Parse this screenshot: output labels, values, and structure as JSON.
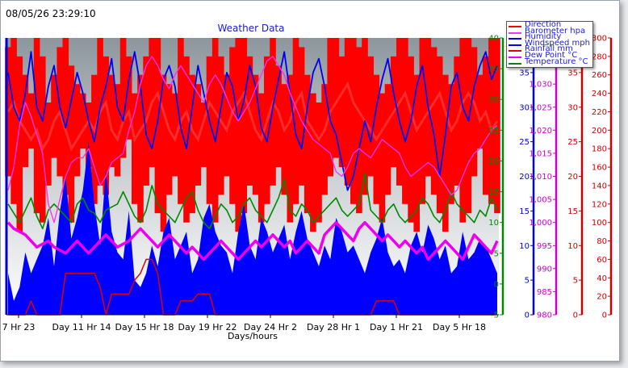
{
  "timestamp": "08/05/26 23:29:10",
  "chart_data": {
    "type": "line",
    "title": "Weather Data",
    "xlabel": "Days/hours",
    "x_ticks": [
      "7 Hr 23",
      "Day 11 Hr 14",
      "Day 15 Hr 18",
      "Day 19 Hr 22",
      "Day 24 Hr 2",
      "Day 28 Hr 1",
      "Day 1 Hr 21",
      "Day 5 Hr 18"
    ],
    "grid": false,
    "legend_position": "top-right",
    "series": [
      {
        "name": "Direction",
        "color": "#ff0000",
        "axis": "direction"
      },
      {
        "name": "Barometer hpa",
        "color": "#ff33ee",
        "axis": "barometer"
      },
      {
        "name": "Humidity",
        "color": "#0000ee",
        "axis": "humidity"
      },
      {
        "name": "Windspeed mph",
        "color": "#0000ff",
        "axis": "windspeed"
      },
      {
        "name": "Rainfall mm",
        "color": "#dd0000",
        "axis": "rainfall"
      },
      {
        "name": "Dew Point °C",
        "color": "#ee00ee",
        "axis": "dewpoint"
      },
      {
        "name": "Temperature °C",
        "color": "#008800",
        "axis": "temperature"
      }
    ],
    "axes": [
      {
        "id": "temperature",
        "color": "#008800",
        "min": -5,
        "max": 40,
        "ticks": [
          "-5",
          "0",
          "5",
          "10",
          "15",
          "20",
          "25",
          "30",
          "35",
          "40"
        ]
      },
      {
        "id": "windspeed",
        "color": "#0000cc",
        "min": 0,
        "max": 40,
        "ticks": [
          "0",
          "5",
          "10",
          "15",
          "20",
          "25",
          "30",
          "35",
          "40"
        ]
      },
      {
        "id": "barometer",
        "color": "#cc00cc",
        "min": 980,
        "max": 1040,
        "ticks": [
          "980",
          "985",
          "990",
          "995",
          "1,000",
          "1,005",
          "1,010",
          "1,015",
          "1,020",
          "1,025",
          "1,030",
          "1,035",
          "1,040"
        ]
      },
      {
        "id": "rainfall",
        "color": "#cc0000",
        "min": 0,
        "max": 40,
        "ticks": [
          "0",
          "5",
          "10",
          "15",
          "20",
          "25",
          "30",
          "35",
          "40"
        ]
      },
      {
        "id": "direction",
        "color": "#cc0000",
        "min": 0,
        "max": 300,
        "ticks": [
          "0",
          "20",
          "40",
          "60",
          "80",
          "100",
          "120",
          "140",
          "160",
          "180",
          "200",
          "220",
          "240",
          "260",
          "280",
          "300"
        ]
      }
    ],
    "temperature": [
      13,
      11.5,
      10,
      12,
      14,
      11,
      9,
      12,
      13,
      12,
      11,
      10,
      13,
      14,
      12,
      11.5,
      10,
      12,
      12.5,
      13,
      15,
      13,
      11,
      10,
      12,
      16,
      13,
      12,
      11,
      10,
      12,
      14,
      15,
      12,
      10,
      9,
      11,
      13,
      12,
      10,
      11,
      13,
      14,
      12,
      11,
      10,
      12,
      14,
      17,
      12,
      11,
      13,
      12,
      10,
      11,
      12,
      13,
      14,
      12,
      11,
      12,
      13,
      18,
      12,
      11,
      10,
      12,
      13,
      11,
      10,
      11,
      12,
      14,
      13,
      11,
      10,
      12,
      15,
      13,
      12,
      11,
      10,
      12,
      11,
      14,
      12
    ],
    "dewpoint": [
      10,
      9,
      8.5,
      8,
      7,
      6,
      6.5,
      7,
      6,
      5.5,
      5,
      6,
      7,
      6,
      5,
      6,
      7,
      8,
      7,
      6,
      6.5,
      7,
      8,
      9,
      8,
      7,
      6,
      7,
      8,
      7,
      6,
      5,
      6,
      5,
      4,
      5,
      6,
      7,
      6,
      5,
      4,
      5,
      6,
      7,
      6,
      7,
      8,
      7,
      6,
      7,
      5,
      6,
      7,
      6,
      5,
      8,
      9,
      10,
      9,
      8,
      7,
      9,
      10,
      9,
      8,
      7,
      8,
      7,
      6,
      7,
      6,
      5,
      6,
      4,
      5,
      6,
      7,
      6,
      5,
      4,
      6,
      8,
      7,
      6,
      5,
      7
    ],
    "humidity": [
      35,
      30,
      28,
      32,
      38,
      30,
      28,
      33,
      36,
      30,
      27,
      31,
      35,
      32,
      28,
      25,
      30,
      33,
      37,
      30,
      28,
      34,
      38,
      33,
      26,
      24,
      28,
      34,
      36,
      33,
      27,
      24,
      30,
      36,
      32,
      28,
      25,
      30,
      35,
      33,
      28,
      31,
      36,
      33,
      27,
      25,
      30,
      34,
      38,
      32,
      26,
      24,
      30,
      35,
      37,
      33,
      28,
      26,
      22,
      18,
      20,
      24,
      28,
      25,
      30,
      34,
      37,
      32,
      28,
      25,
      28,
      33,
      36,
      30,
      26,
      20,
      26,
      33,
      35,
      30,
      28,
      33,
      36,
      38,
      34,
      36
    ],
    "windspeed_max": [
      6,
      2,
      4,
      9,
      6,
      8,
      10,
      14,
      7,
      15,
      20,
      11,
      14,
      18,
      25,
      16,
      10,
      21,
      12,
      9,
      8,
      15,
      5,
      4,
      6,
      10,
      7,
      12,
      14,
      8,
      10,
      12,
      6,
      8,
      14,
      16,
      12,
      10,
      9,
      6,
      12,
      16,
      10,
      8,
      14,
      12,
      9,
      11,
      13,
      8,
      12,
      15,
      11,
      9,
      7,
      10,
      8,
      14,
      12,
      9,
      10,
      8,
      6,
      9,
      11,
      14,
      9,
      7,
      8,
      6,
      10,
      12,
      9,
      13,
      11,
      8,
      10,
      6,
      7,
      12,
      8,
      9,
      11,
      10,
      8,
      6
    ],
    "barometer": [
      1007,
      1012,
      1021,
      1026,
      1023,
      1019,
      1015,
      1004,
      1000,
      1005,
      1010,
      1013,
      1014,
      1014,
      1016,
      1012,
      1008,
      1010,
      1013,
      1014,
      1015,
      1020,
      1024,
      1030,
      1034,
      1036,
      1034,
      1031,
      1029,
      1032,
      1034,
      1032,
      1030,
      1028,
      1026,
      1030,
      1032,
      1030,
      1027,
      1024,
      1022,
      1024,
      1026,
      1029,
      1032,
      1035,
      1036,
      1034,
      1032,
      1028,
      1025,
      1022,
      1020,
      1018,
      1017,
      1016,
      1015,
      1011,
      1010,
      1012,
      1015,
      1016,
      1015,
      1014,
      1016,
      1018,
      1017,
      1016,
      1015,
      1012,
      1010,
      1011,
      1012,
      1013,
      1012,
      1010,
      1008,
      1006,
      1007,
      1010,
      1013,
      1015,
      1016,
      1018,
      1020,
      1021
    ],
    "rainfall": [
      0,
      0,
      0,
      0,
      2,
      0,
      0,
      0,
      0,
      0,
      6,
      6,
      6,
      6,
      6,
      6,
      4,
      0,
      3,
      3,
      3,
      3,
      5,
      6,
      8,
      8,
      6,
      0,
      0,
      0,
      2,
      2,
      2,
      3,
      3,
      3,
      0,
      0,
      0,
      0,
      0,
      0,
      0,
      0,
      0,
      0,
      0,
      0,
      0,
      0,
      0,
      0,
      0,
      0,
      0,
      0,
      0,
      0,
      0,
      0,
      0,
      0,
      0,
      0,
      2,
      2,
      2,
      2,
      0,
      0,
      0,
      0,
      0,
      0,
      0,
      0,
      0,
      0,
      0,
      0,
      0,
      0,
      0,
      0,
      0,
      0
    ],
    "direction_low": [
      150,
      120,
      90,
      160,
      180,
      110,
      100,
      140,
      170,
      150,
      130,
      100,
      150,
      180,
      160,
      120,
      140,
      130,
      160,
      150,
      170,
      190,
      120,
      100,
      140,
      160,
      110,
      90,
      130,
      150,
      120,
      100,
      110,
      140,
      160,
      120,
      100,
      130,
      150,
      120,
      90,
      110,
      140,
      130,
      100,
      120,
      140,
      160,
      130,
      100,
      120,
      140,
      110,
      90,
      100,
      130,
      150,
      170,
      160,
      140,
      120,
      110,
      130,
      150,
      120,
      100,
      130,
      160,
      140,
      120,
      100,
      90,
      120,
      150,
      130,
      110,
      90,
      120,
      140,
      100,
      110,
      150,
      180,
      130,
      120,
      110
    ],
    "direction_high": [
      290,
      300,
      280,
      260,
      240,
      300,
      280,
      230,
      260,
      290,
      300,
      270,
      250,
      240,
      230,
      260,
      300,
      280,
      260,
      250,
      300,
      280,
      240,
      260,
      280,
      300,
      300,
      260,
      250,
      240,
      300,
      280,
      260,
      250,
      230,
      280,
      300,
      280,
      260,
      290,
      300,
      300,
      280,
      260,
      240,
      280,
      300,
      270,
      250,
      260,
      300,
      290,
      260,
      240,
      230,
      250,
      300,
      300,
      280,
      300,
      300,
      290,
      300,
      280,
      260,
      240,
      250,
      280,
      300,
      300,
      280,
      260,
      300,
      300,
      290,
      280,
      260,
      250,
      280,
      300,
      300,
      290,
      260,
      280,
      300,
      300
    ],
    "direction_mid": [
      220,
      230,
      210,
      200,
      190,
      200,
      180,
      190,
      210,
      220,
      200,
      180,
      190,
      200,
      210,
      200,
      220,
      230,
      200,
      190,
      210,
      220,
      190,
      200,
      210,
      230,
      240,
      220,
      200,
      190,
      210,
      220,
      200,
      190,
      210,
      230,
      220,
      210,
      200,
      220,
      230,
      240,
      220,
      200,
      190,
      210,
      230,
      220,
      200,
      210,
      230,
      240,
      210,
      200,
      190,
      200,
      220,
      230,
      240,
      250,
      230,
      220,
      210,
      200,
      190,
      200,
      210,
      220,
      230,
      240,
      220,
      200,
      210,
      220,
      230,
      240,
      220,
      200,
      210,
      230,
      240,
      230,
      210,
      220,
      200,
      210
    ]
  }
}
